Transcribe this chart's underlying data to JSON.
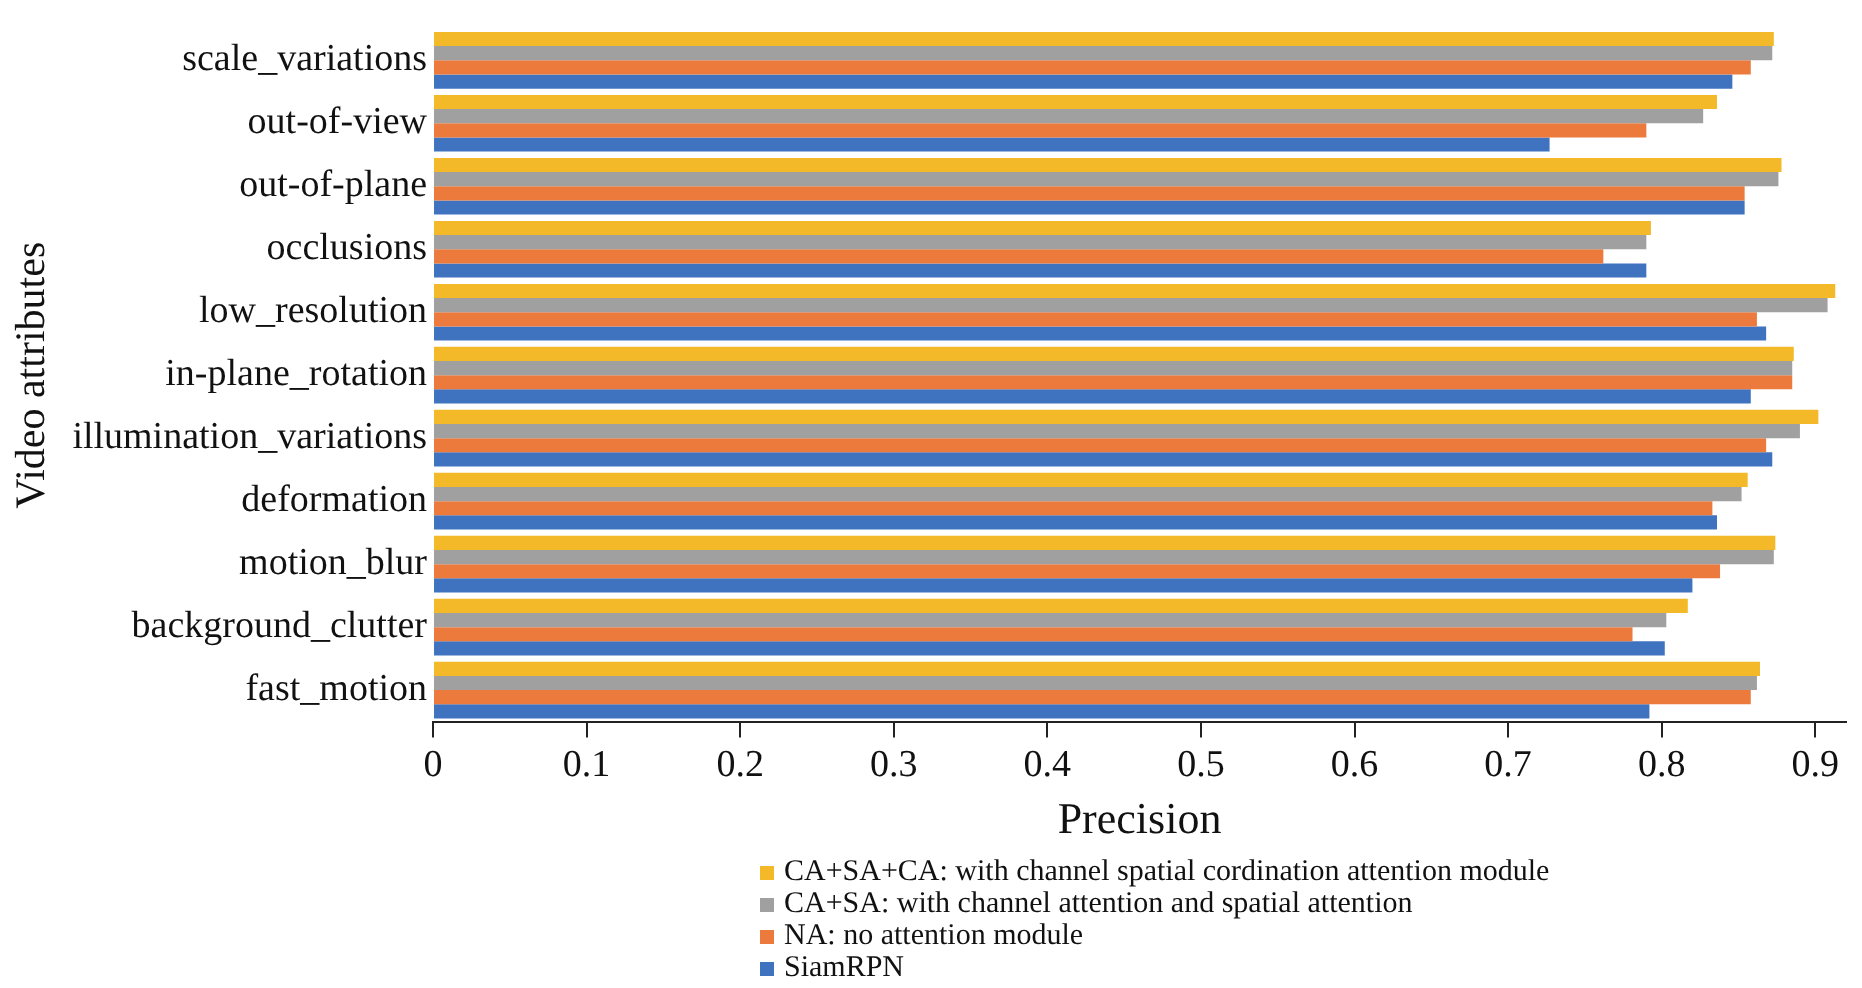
{
  "chart_data": {
    "type": "bar",
    "orientation": "horizontal",
    "xlabel": "Precision",
    "ylabel": "Video attributes",
    "categories": [
      "scale_variations",
      "out-of-view",
      "out-of-plane",
      "occlusions",
      "low_resolution",
      "in-plane_rotation",
      "illumination_variations",
      "deformation",
      "motion_blur",
      "background_clutter",
      "fast_motion"
    ],
    "series": [
      {
        "name": "CA+SA+CA: with channel spatial cordination attention module",
        "color": "#f4b929",
        "values": [
          0.873,
          0.836,
          0.878,
          0.793,
          0.913,
          0.886,
          0.902,
          0.856,
          0.874,
          0.817,
          0.864
        ]
      },
      {
        "name": "CA+SA: with channel attention and spatial attention",
        "color": "#a0a0a0",
        "values": [
          0.872,
          0.827,
          0.876,
          0.79,
          0.908,
          0.885,
          0.89,
          0.852,
          0.873,
          0.803,
          0.862
        ]
      },
      {
        "name": "NA: no attention module",
        "color": "#ec7a3c",
        "values": [
          0.858,
          0.79,
          0.854,
          0.762,
          0.862,
          0.885,
          0.868,
          0.833,
          0.838,
          0.781,
          0.858
        ]
      },
      {
        "name": "SiamRPN",
        "color": "#3f73c0",
        "values": [
          0.846,
          0.727,
          0.854,
          0.79,
          0.868,
          0.858,
          0.872,
          0.836,
          0.82,
          0.802,
          0.792
        ]
      }
    ],
    "xlim": [
      0,
      0.92
    ],
    "xticks": [
      0,
      0.1,
      0.2,
      0.3,
      0.4,
      0.5,
      0.6,
      0.7,
      0.8,
      0.9
    ],
    "grid": false,
    "legend": "bottom"
  }
}
